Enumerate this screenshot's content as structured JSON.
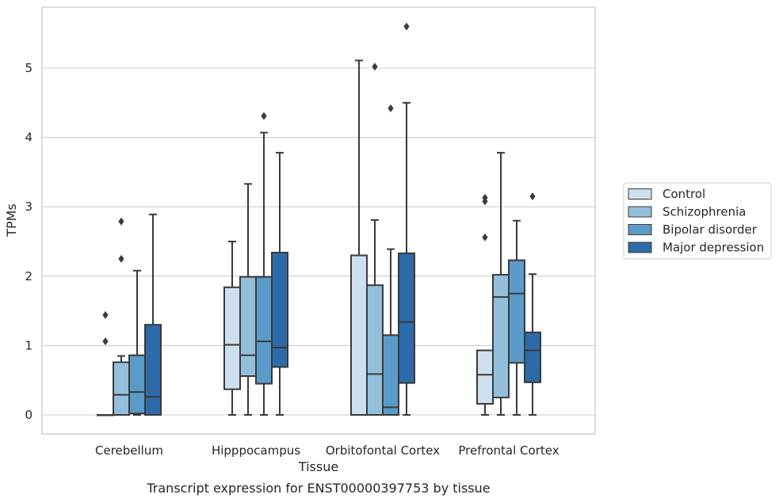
{
  "caption": "Transcript expression for ENST00000397753 by tissue",
  "chart_data": {
    "type": "box",
    "title": "",
    "xlabel": "Tissue",
    "ylabel": "TPMs",
    "ylim": [
      -0.27,
      5.9
    ],
    "yticks": [
      0,
      1,
      2,
      3,
      4,
      5
    ],
    "grid": "horizontal",
    "legend_position": "right",
    "categories": [
      "Cerebellum",
      "Hipppocampus",
      "Orbitofontal Cortex",
      "Prefrontal Cortex"
    ],
    "series": [
      {
        "name": "Control",
        "color": "#cedfef",
        "boxes": [
          {
            "whislo": 0,
            "q1": 0,
            "med": 0,
            "q3": 0,
            "whishi": 0,
            "fliers": [
              1.06,
              1.44
            ]
          },
          {
            "whislo": 0,
            "q1": 0.37,
            "med": 1.01,
            "q3": 1.84,
            "whishi": 2.5,
            "fliers": []
          },
          {
            "whislo": 0,
            "q1": 0,
            "med": 0,
            "q3": 2.3,
            "whishi": 5.11,
            "fliers": []
          },
          {
            "whislo": 0,
            "q1": 0.16,
            "med": 0.58,
            "q3": 0.93,
            "whishi": 0.93,
            "fliers": [
              2.56,
              3.08,
              3.13
            ]
          }
        ]
      },
      {
        "name": "Schizophrenia",
        "color": "#93bfdb",
        "boxes": [
          {
            "whislo": 0,
            "q1": 0,
            "med": 0.29,
            "q3": 0.76,
            "whishi": 0.85,
            "fliers": [
              2.25,
              2.79
            ]
          },
          {
            "whislo": 0,
            "q1": 0.56,
            "med": 0.86,
            "q3": 1.99,
            "whishi": 3.33,
            "fliers": []
          },
          {
            "whislo": 0,
            "q1": 0,
            "med": 0.59,
            "q3": 1.87,
            "whishi": 2.81,
            "fliers": [
              5.02
            ]
          },
          {
            "whislo": 0,
            "q1": 0.25,
            "med": 1.7,
            "q3": 2.02,
            "whishi": 3.78,
            "fliers": []
          }
        ]
      },
      {
        "name": "Bipolar disorder",
        "color": "#5a9bc9",
        "boxes": [
          {
            "whislo": 0,
            "q1": 0.02,
            "med": 0.33,
            "q3": 0.86,
            "whishi": 2.08,
            "fliers": []
          },
          {
            "whislo": 0,
            "q1": 0.45,
            "med": 1.06,
            "q3": 1.99,
            "whishi": 4.07,
            "fliers": [
              4.31
            ]
          },
          {
            "whislo": 0,
            "q1": 0,
            "med": 0.11,
            "q3": 1.15,
            "whishi": 2.39,
            "fliers": [
              4.42
            ]
          },
          {
            "whislo": 0,
            "q1": 0.75,
            "med": 1.75,
            "q3": 2.23,
            "whishi": 2.8,
            "fliers": []
          }
        ]
      },
      {
        "name": "Major depression",
        "color": "#2d6aa8",
        "boxes": [
          {
            "whislo": 0,
            "q1": 0,
            "med": 0.26,
            "q3": 1.3,
            "whishi": 2.89,
            "fliers": []
          },
          {
            "whislo": 0,
            "q1": 0.69,
            "med": 0.97,
            "q3": 2.34,
            "whishi": 3.78,
            "fliers": []
          },
          {
            "whislo": 0,
            "q1": 0.46,
            "med": 1.34,
            "q3": 2.33,
            "whishi": 4.5,
            "fliers": [
              5.6
            ]
          },
          {
            "whislo": 0,
            "q1": 0.47,
            "med": 0.93,
            "q3": 1.19,
            "whishi": 2.03,
            "fliers": [
              3.15
            ]
          }
        ]
      }
    ]
  }
}
